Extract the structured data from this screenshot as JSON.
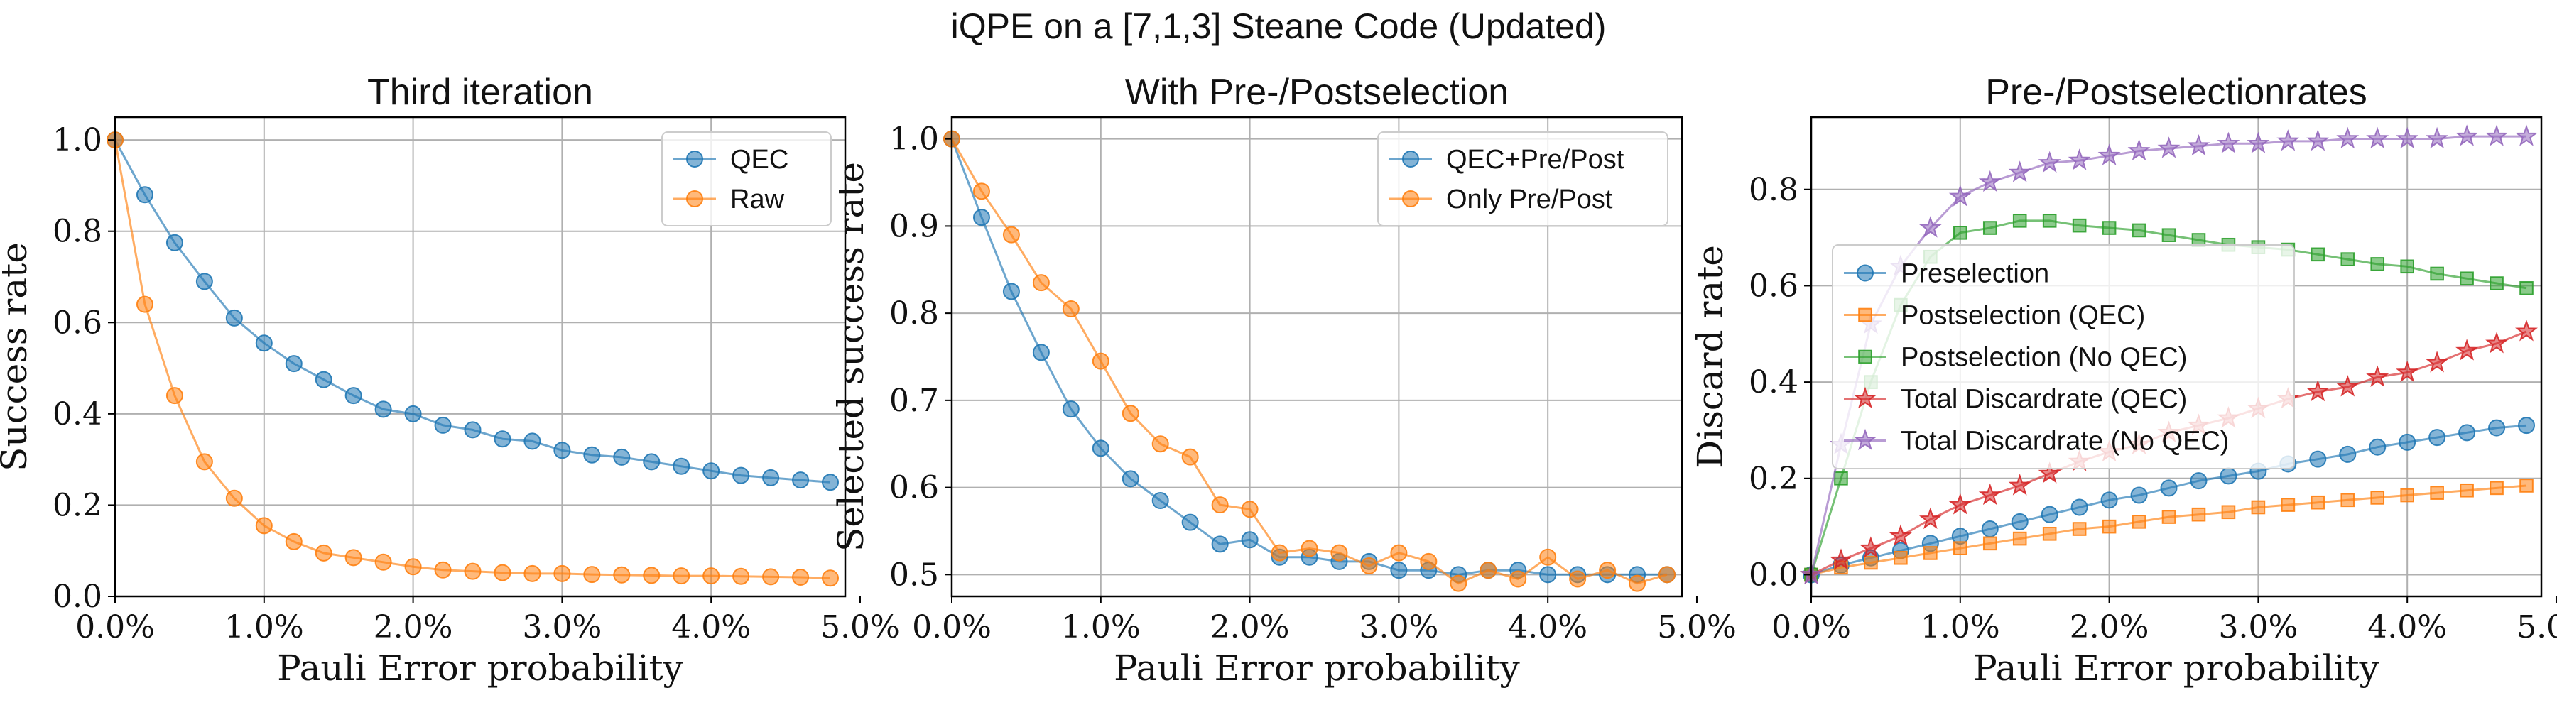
{
  "figure": {
    "title": "iQPE on a [7,1,3] Steane Code (Updated)"
  },
  "colors": {
    "blue": "#1f77b4",
    "orange": "#ff7f0e",
    "green": "#2ca02c",
    "red": "#d62728",
    "purple": "#9467bd"
  },
  "chart_data": [
    {
      "type": "line",
      "title": "Third iteration",
      "xlabel": "Pauli Error probability",
      "ylabel": "Success rate",
      "xlim": [
        0,
        0.049
      ],
      "ylim": [
        0,
        1.05
      ],
      "grid": true,
      "legend": "top-right",
      "xticks": [
        0,
        0.01,
        0.02,
        0.03,
        0.04,
        0.05
      ],
      "xticklabels": [
        "0.0%",
        "1.0%",
        "2.0%",
        "3.0%",
        "4.0%",
        "5.0%"
      ],
      "yticks": [
        0,
        0.2,
        0.4,
        0.6,
        0.8,
        1.0
      ],
      "yticklabels": [
        "0.0",
        "0.2",
        "0.4",
        "0.6",
        "0.8",
        "1.0"
      ],
      "x": [
        0,
        0.002,
        0.004,
        0.006,
        0.008,
        0.01,
        0.012,
        0.014,
        0.016,
        0.018,
        0.02,
        0.022,
        0.024,
        0.026,
        0.028,
        0.03,
        0.032,
        0.034,
        0.036,
        0.038,
        0.04,
        0.042,
        0.044,
        0.046,
        0.048
      ],
      "series": [
        {
          "name": "QEC",
          "marker": "circle",
          "color": "#1f77b4",
          "values": [
            1.0,
            0.88,
            0.775,
            0.69,
            0.61,
            0.555,
            0.51,
            0.475,
            0.44,
            0.41,
            0.4,
            0.375,
            0.365,
            0.345,
            0.34,
            0.32,
            0.31,
            0.305,
            0.295,
            0.285,
            0.275,
            0.265,
            0.26,
            0.255,
            0.25
          ]
        },
        {
          "name": "Raw",
          "marker": "circle",
          "color": "#ff7f0e",
          "values": [
            1.0,
            0.64,
            0.44,
            0.295,
            0.215,
            0.155,
            0.12,
            0.095,
            0.085,
            0.075,
            0.065,
            0.058,
            0.055,
            0.052,
            0.05,
            0.05,
            0.048,
            0.047,
            0.046,
            0.045,
            0.045,
            0.044,
            0.043,
            0.042,
            0.04
          ]
        }
      ]
    },
    {
      "type": "line",
      "title": "With Pre-/Postselection",
      "xlabel": "Pauli Error probability",
      "ylabel": "Selected success rate",
      "xlim": [
        0,
        0.049
      ],
      "ylim": [
        0.475,
        1.025
      ],
      "grid": true,
      "legend": "top-right",
      "xticks": [
        0,
        0.01,
        0.02,
        0.03,
        0.04,
        0.05
      ],
      "xticklabels": [
        "0.0%",
        "1.0%",
        "2.0%",
        "3.0%",
        "4.0%",
        "5.0%"
      ],
      "yticks": [
        0.5,
        0.6,
        0.7,
        0.8,
        0.9,
        1.0
      ],
      "yticklabels": [
        "0.5",
        "0.6",
        "0.7",
        "0.8",
        "0.9",
        "1.0"
      ],
      "x": [
        0,
        0.002,
        0.004,
        0.006,
        0.008,
        0.01,
        0.012,
        0.014,
        0.016,
        0.018,
        0.02,
        0.022,
        0.024,
        0.026,
        0.028,
        0.03,
        0.032,
        0.034,
        0.036,
        0.038,
        0.04,
        0.042,
        0.044,
        0.046,
        0.048
      ],
      "series": [
        {
          "name": "QEC+Pre/Post",
          "marker": "circle",
          "color": "#1f77b4",
          "values": [
            1.0,
            0.91,
            0.825,
            0.755,
            0.69,
            0.645,
            0.61,
            0.585,
            0.56,
            0.535,
            0.54,
            0.52,
            0.52,
            0.515,
            0.515,
            0.505,
            0.505,
            0.5,
            0.505,
            0.505,
            0.5,
            0.5,
            0.5,
            0.5,
            0.5
          ]
        },
        {
          "name": "Only Pre/Post",
          "marker": "circle",
          "color": "#ff7f0e",
          "values": [
            1.0,
            0.94,
            0.89,
            0.835,
            0.805,
            0.745,
            0.685,
            0.65,
            0.635,
            0.58,
            0.575,
            0.525,
            0.53,
            0.525,
            0.51,
            0.525,
            0.515,
            0.49,
            0.505,
            0.495,
            0.52,
            0.495,
            0.505,
            0.49,
            0.5
          ]
        }
      ]
    },
    {
      "type": "line",
      "title": "Pre-/Postselectionrates",
      "xlabel": "Pauli Error probability",
      "ylabel": "Discard rate",
      "xlim": [
        0,
        0.049
      ],
      "ylim": [
        -0.045,
        0.95
      ],
      "grid": true,
      "legend": "center-left",
      "xticks": [
        0,
        0.01,
        0.02,
        0.03,
        0.04,
        0.05
      ],
      "xticklabels": [
        "0.0%",
        "1.0%",
        "2.0%",
        "3.0%",
        "4.0%",
        "5.0%"
      ],
      "yticks": [
        0,
        0.2,
        0.4,
        0.6,
        0.8
      ],
      "yticklabels": [
        "0.0",
        "0.2",
        "0.4",
        "0.6",
        "0.8"
      ],
      "x": [
        0,
        0.002,
        0.004,
        0.006,
        0.008,
        0.01,
        0.012,
        0.014,
        0.016,
        0.018,
        0.02,
        0.022,
        0.024,
        0.026,
        0.028,
        0.03,
        0.032,
        0.034,
        0.036,
        0.038,
        0.04,
        0.042,
        0.044,
        0.046,
        0.048
      ],
      "series": [
        {
          "name": "Preselection",
          "marker": "circle",
          "color": "#1f77b4",
          "values": [
            0.0,
            0.02,
            0.035,
            0.05,
            0.065,
            0.08,
            0.095,
            0.11,
            0.125,
            0.14,
            0.155,
            0.165,
            0.18,
            0.195,
            0.205,
            0.215,
            0.23,
            0.24,
            0.25,
            0.265,
            0.275,
            0.285,
            0.295,
            0.305,
            0.31
          ]
        },
        {
          "name": "Postselection (QEC)",
          "marker": "square",
          "color": "#ff7f0e",
          "values": [
            0.0,
            0.015,
            0.025,
            0.035,
            0.045,
            0.055,
            0.065,
            0.075,
            0.085,
            0.095,
            0.1,
            0.11,
            0.12,
            0.125,
            0.13,
            0.14,
            0.145,
            0.15,
            0.155,
            0.16,
            0.165,
            0.17,
            0.175,
            0.18,
            0.185
          ]
        },
        {
          "name": "Postselection (No QEC)",
          "marker": "square",
          "color": "#2ca02c",
          "values": [
            0.0,
            0.2,
            0.4,
            0.56,
            0.66,
            0.71,
            0.72,
            0.735,
            0.735,
            0.725,
            0.72,
            0.715,
            0.705,
            0.695,
            0.685,
            0.68,
            0.675,
            0.665,
            0.655,
            0.645,
            0.64,
            0.625,
            0.615,
            0.605,
            0.595
          ]
        },
        {
          "name": "Total Discardrate (QEC)",
          "marker": "star",
          "color": "#d62728",
          "values": [
            0.0,
            0.03,
            0.055,
            0.08,
            0.115,
            0.145,
            0.165,
            0.185,
            0.21,
            0.235,
            0.255,
            0.27,
            0.295,
            0.31,
            0.325,
            0.345,
            0.365,
            0.38,
            0.39,
            0.41,
            0.42,
            0.44,
            0.465,
            0.48,
            0.505
          ]
        },
        {
          "name": "Total Discardrate (No QEC)",
          "marker": "star",
          "color": "#9467bd",
          "values": [
            0.0,
            0.27,
            0.52,
            0.64,
            0.72,
            0.785,
            0.815,
            0.835,
            0.855,
            0.86,
            0.87,
            0.88,
            0.885,
            0.89,
            0.895,
            0.895,
            0.9,
            0.9,
            0.905,
            0.905,
            0.905,
            0.905,
            0.91,
            0.91,
            0.91
          ]
        }
      ]
    }
  ]
}
